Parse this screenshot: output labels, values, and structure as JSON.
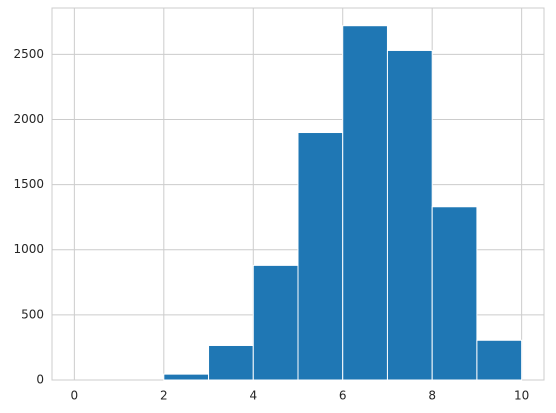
{
  "chart_data": {
    "type": "histogram",
    "bins": [
      0,
      1,
      2,
      3,
      4,
      5,
      6,
      7,
      8,
      9,
      10
    ],
    "values": [
      0,
      0,
      45,
      265,
      880,
      1900,
      2720,
      2530,
      1330,
      305
    ],
    "color": "#1f77b4",
    "xlim": [
      -0.5,
      10.5
    ],
    "xticks": [
      0,
      2,
      4,
      6,
      8,
      10
    ],
    "ylim": [
      0,
      2856
    ],
    "yticks": [
      0,
      500,
      1000,
      1500,
      2000,
      2500
    ],
    "grid": true
  }
}
